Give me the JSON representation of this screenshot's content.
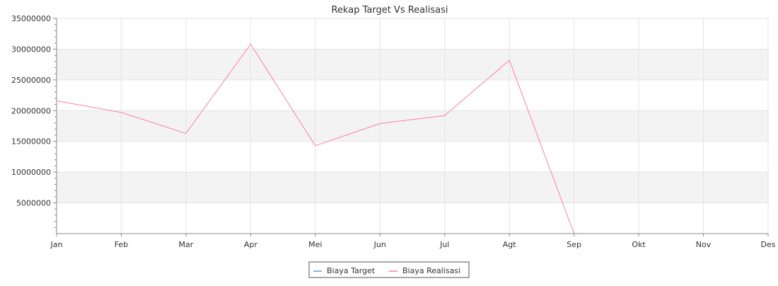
{
  "chart_data": {
    "type": "line",
    "title": "Rekap Target Vs Realisasi",
    "xlabel": "",
    "ylabel": "",
    "categories": [
      "Jan",
      "Feb",
      "Mar",
      "Apr",
      "Mei",
      "Jun",
      "Jul",
      "Agt",
      "Sep",
      "Okt",
      "Nov",
      "Des"
    ],
    "ylim": [
      0,
      35000000
    ],
    "yticks": [
      5000000,
      10000000,
      15000000,
      20000000,
      25000000,
      30000000,
      35000000
    ],
    "ytick_labels": [
      "5000000",
      "10000000",
      "15000000",
      "20000000",
      "25000000",
      "30000000",
      "35000000"
    ],
    "grid": true,
    "legend_position": "bottom-center",
    "series": [
      {
        "name": "Biaya Target",
        "color": "#5b9bd5",
        "values": [
          null,
          null,
          null,
          null,
          null,
          null,
          null,
          null,
          null,
          null,
          null,
          null
        ]
      },
      {
        "name": "Biaya Realisasi",
        "color": "#ff7fa8",
        "values": [
          21600000,
          19700000,
          16300000,
          30800000,
          14300000,
          17900000,
          19200000,
          28200000,
          0,
          null,
          null,
          null
        ]
      }
    ]
  }
}
